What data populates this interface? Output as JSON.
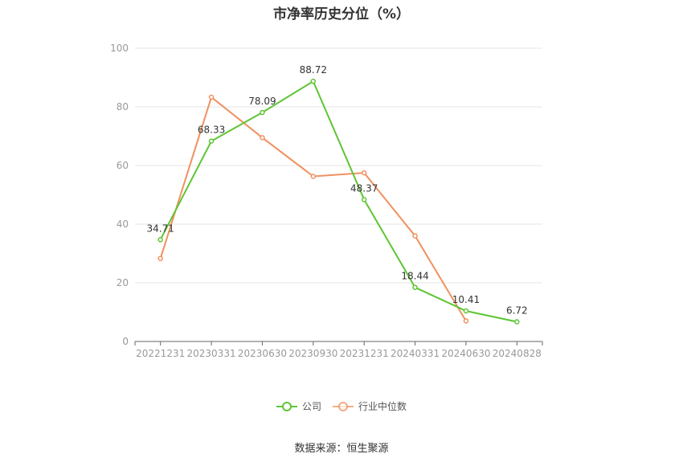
{
  "title": "市净率历史分位（%）",
  "source": "数据来源：恒生聚源",
  "chart_data": {
    "type": "line",
    "categories": [
      "20221231",
      "20230331",
      "20230630",
      "20230930",
      "20231231",
      "20240331",
      "20240630",
      "20240828"
    ],
    "ylim": [
      0,
      100
    ],
    "yticks": [
      0,
      20,
      40,
      60,
      80,
      100
    ],
    "grid": true,
    "legend_position": "bottom-center",
    "series": [
      {
        "name": "公司",
        "color": "#5ec534",
        "values": [
          34.71,
          68.33,
          78.09,
          88.72,
          48.37,
          18.44,
          10.41,
          6.72
        ],
        "labels": [
          "34.71",
          "68.33",
          "78.09",
          "88.72",
          "48.37",
          "18.44",
          "10.41",
          "6.72"
        ]
      },
      {
        "name": "行业中位数",
        "color": "#f0915f",
        "values": [
          28.3,
          83.3,
          69.5,
          56.3,
          57.5,
          36.0,
          7.0,
          null
        ]
      }
    ]
  }
}
